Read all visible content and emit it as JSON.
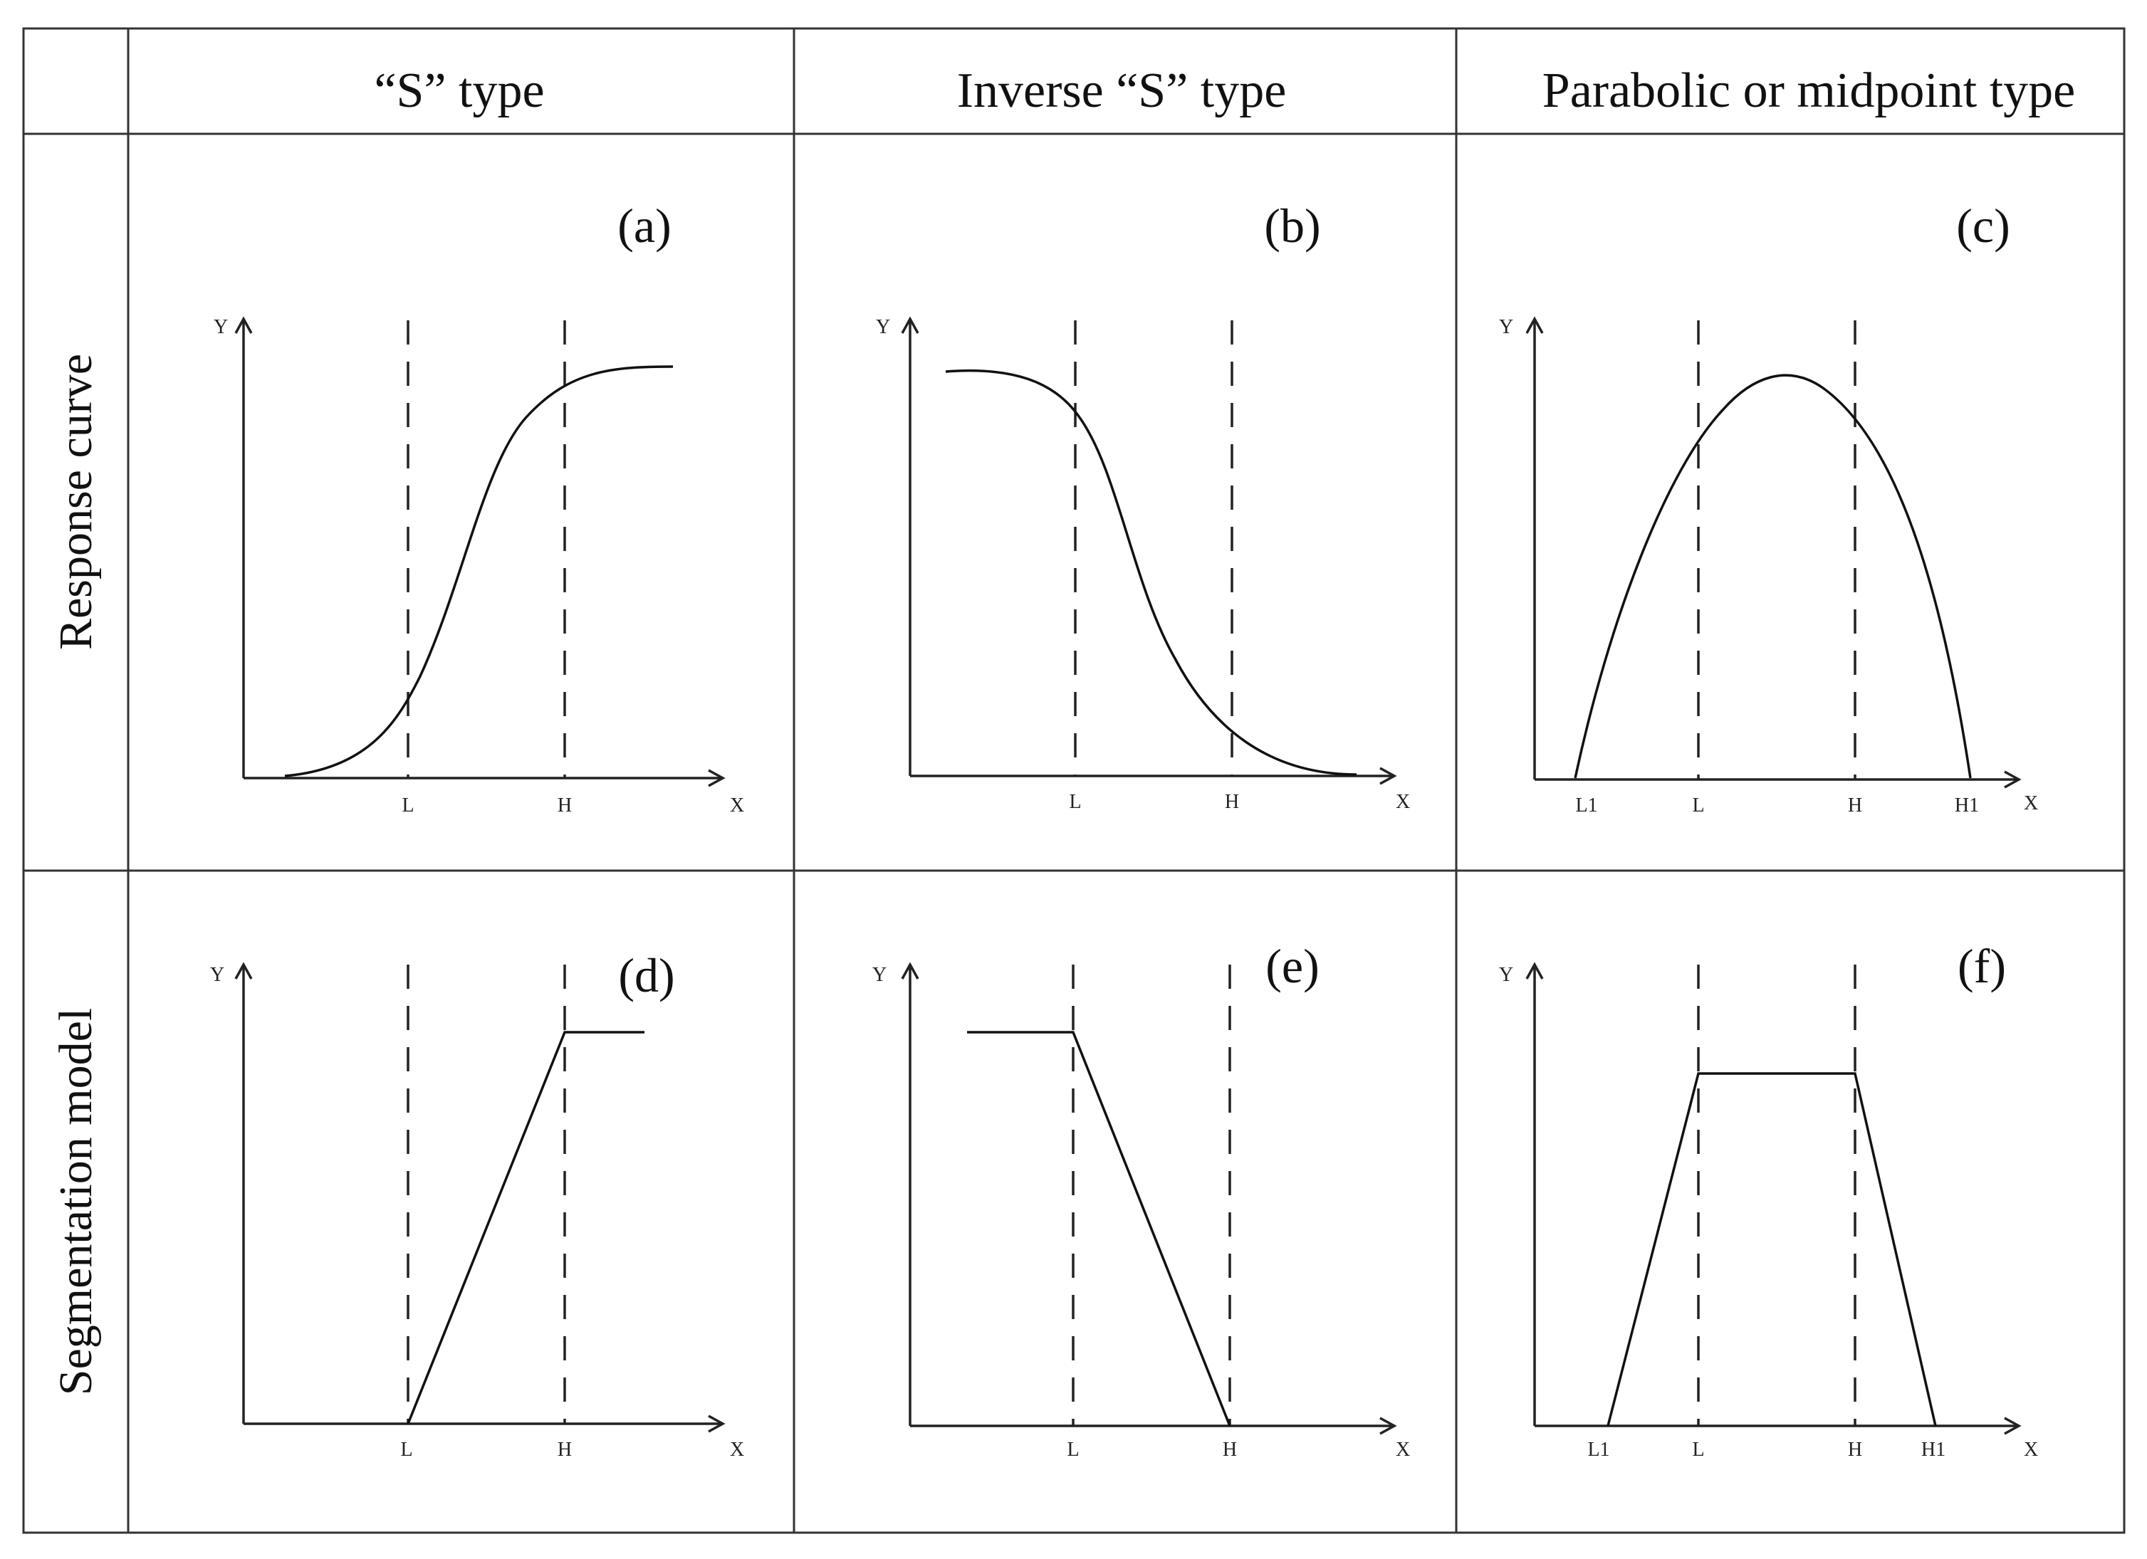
{
  "header": {
    "col1": "“S” type",
    "col2": "Inverse “S” type",
    "col3": "Parabolic or midpoint type"
  },
  "rows": {
    "row1": "Response curve",
    "row2": "Segmentation model"
  },
  "panels": [
    {
      "tag": "(a)",
      "shape": "s-curve",
      "x_ticks": [
        "L",
        "H"
      ]
    },
    {
      "tag": "(b)",
      "shape": "inverse-s-curve",
      "x_ticks": [
        "L",
        "H"
      ]
    },
    {
      "tag": "(c)",
      "shape": "parabola",
      "x_ticks": [
        "L1",
        "L",
        "H",
        "H1"
      ]
    },
    {
      "tag": "(d)",
      "shape": "ramp-up-plateau",
      "x_ticks": [
        "L",
        "H"
      ]
    },
    {
      "tag": "(e)",
      "shape": "plateau-ramp-down",
      "x_ticks": [
        "L",
        "H"
      ]
    },
    {
      "tag": "(f)",
      "shape": "trapezoid",
      "x_ticks": [
        "L1",
        "L",
        "H",
        "H1"
      ]
    }
  ],
  "axis": {
    "x": "X",
    "y": "Y"
  }
}
